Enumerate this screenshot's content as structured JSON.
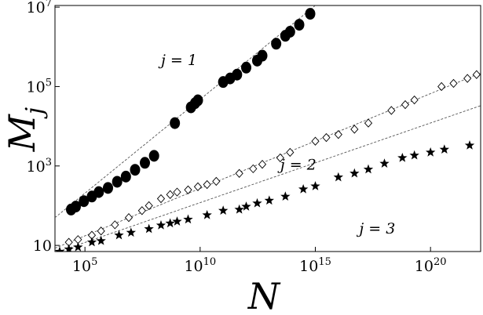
{
  "chart_data": {
    "type": "scatter",
    "title": "",
    "xlabel": "N",
    "ylabel": "M_j",
    "xscale": "log",
    "yscale": "log",
    "xlim": [
      5000,
      1.5e+22
    ],
    "ylim": [
      7,
      11000000.0
    ],
    "grid": false,
    "legend": "none",
    "x_ticks": [
      {
        "value": 100000.0,
        "base": "10",
        "exp": "5"
      },
      {
        "value": 10000000000.0,
        "base": "10",
        "exp": "10"
      },
      {
        "value": 1000000000000000.0,
        "base": "10",
        "exp": "15"
      },
      {
        "value": 1e+20,
        "base": "10",
        "exp": "20"
      }
    ],
    "y_ticks": [
      {
        "value": 10,
        "base": "10",
        "exp": ""
      },
      {
        "value": 1000,
        "base": "10",
        "exp": "3"
      },
      {
        "value": 100000,
        "base": "10",
        "exp": "5"
      },
      {
        "value": 10000000,
        "base": "10",
        "exp": "7"
      }
    ],
    "annotations": [
      {
        "text": "j = 1",
        "x": 200000000.0,
        "y": 350000.0
      },
      {
        "text": "j = 2",
        "x": 30000000000000.0,
        "y": 800
      },
      {
        "text": "j = 3",
        "x": 8e+16,
        "y": 20
      }
    ],
    "series": [
      {
        "marker": "filled-circle",
        "color": "#000000",
        "fit_line": [
          [
            5000,
            50
          ],
          [
            1000000000000000.0,
            11000000.0
          ]
        ],
        "x": [
          25000.0,
          40000.0,
          90000.0,
          200000.0,
          400000.0,
          1000000.0,
          2500000.0,
          6000000.0,
          15000000.0,
          40000000.0,
          100000000.0,
          800000000.0,
          4000000000.0,
          6000000000.0,
          8000000000.0,
          100000000000.0,
          200000000000.0,
          400000000000.0,
          1000000000000.0,
          3000000000000.0,
          5000000000000.0,
          20000000000000.0,
          50000000000000.0,
          80000000000000.0,
          200000000000000.0,
          600000000000000.0
        ],
        "y": [
          80,
          95,
          130,
          170,
          220,
          280,
          400,
          540,
          800,
          1200,
          1800,
          12000,
          30000,
          38000,
          45000,
          130000.0,
          160000.0,
          200000.0,
          300000.0,
          450000.0,
          600000.0,
          1200000.0,
          1900000.0,
          2400000.0,
          3600000.0,
          6800000.0
        ]
      },
      {
        "marker": "open-diamond",
        "color": "#000000",
        "fit_line": [
          [
            5000,
            8.5
          ],
          [
            1.5e+22,
            220000.0
          ]
        ],
        "x": [
          20000.0,
          50000.0,
          200000.0,
          500000.0,
          2000000.0,
          8000000.0,
          30000000.0,
          60000000.0,
          200000000.0,
          500000000.0,
          1000000000.0,
          3000000000.0,
          8000000000.0,
          20000000000.0,
          50000000000.0,
          500000000000.0,
          2000000000000.0,
          5000000000000.0,
          30000000000000.0,
          80000000000000.0,
          1000000000000000.0,
          3000000000000000.0,
          1e+16,
          5e+16,
          2e+17,
          2e+18,
          8e+18,
          2e+19,
          3e+20,
          1e+21,
          4e+21,
          1e+22
        ],
        "y": [
          12,
          14,
          18,
          23,
          33,
          50,
          75,
          100,
          150,
          190,
          220,
          250,
          300,
          340,
          410,
          650,
          850,
          1100,
          1600,
          2200,
          4200,
          5200,
          6200,
          8400,
          12000.0,
          25000.0,
          35000.0,
          46000.0,
          100000.0,
          120000.0,
          160000.0,
          200000.0
        ]
      },
      {
        "marker": "filled-star",
        "color": "#000000",
        "fit_line": [
          [
            5000,
            6.5
          ],
          [
            1.5e+22,
            33000.0
          ]
        ],
        "x": [
          8000.0,
          20000.0,
          50000.0,
          200000.0,
          500000.0,
          3000000.0,
          10000000.0,
          60000000.0,
          200000000.0,
          500000000.0,
          1000000000.0,
          3000000000.0,
          20000000000.0,
          100000000000.0,
          500000000000.0,
          1000000000000.0,
          3000000000000.0,
          10000000000000.0,
          50000000000000.0,
          300000000000000.0,
          1000000000000000.0,
          1e+16,
          5e+16,
          2e+17,
          1e+18,
          6e+18,
          2e+19,
          1e+20,
          4e+20,
          5e+21
        ],
        "y": [
          7,
          8,
          9,
          12,
          13,
          18,
          21,
          26,
          32,
          36,
          40,
          45,
          58,
          75,
          80,
          95,
          115,
          135,
          170,
          260,
          310,
          520,
          650,
          820,
          1150,
          1600,
          1850,
          2200,
          2600,
          3300
        ]
      }
    ]
  }
}
